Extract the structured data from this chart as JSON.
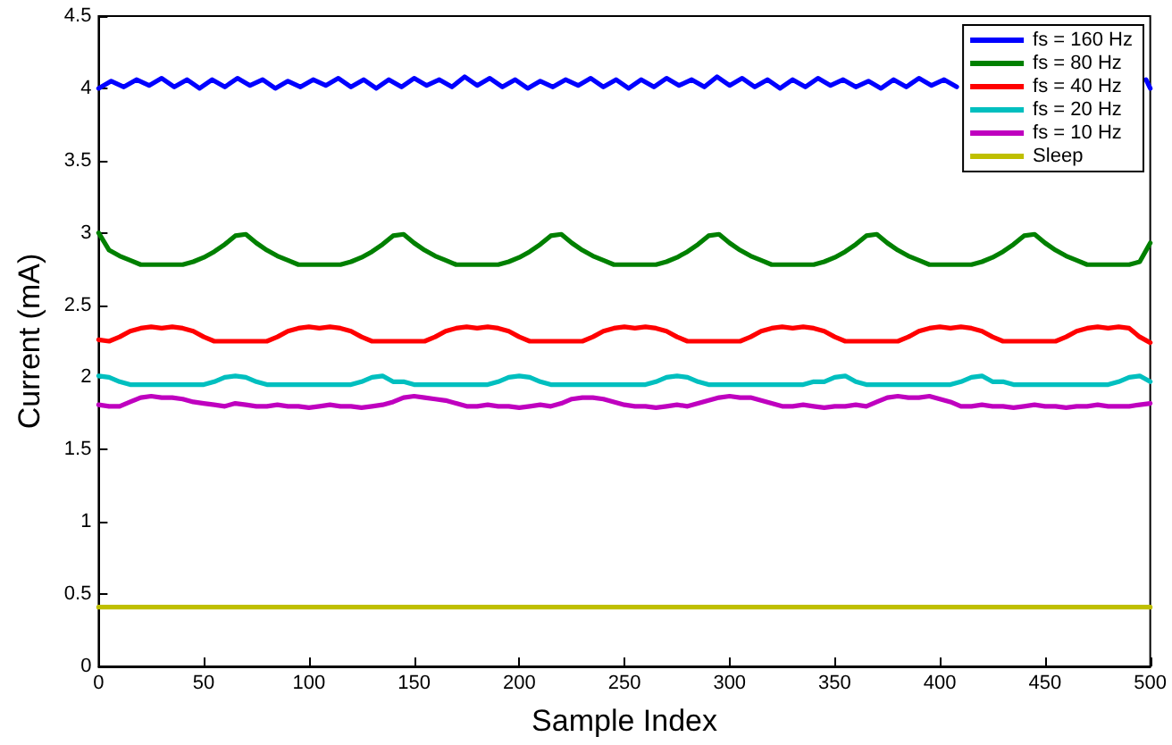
{
  "chart_data": {
    "type": "line",
    "xlabel": "Sample Index",
    "ylabel": "Current (mA)",
    "xlim": [
      0,
      500
    ],
    "xticks": [
      0,
      50,
      100,
      150,
      200,
      250,
      300,
      350,
      400,
      450,
      500
    ],
    "ylim": [
      0,
      4.5
    ],
    "yticks": [
      0,
      0.5,
      1,
      1.5,
      2,
      2.5,
      3,
      3.5,
      4,
      4.5
    ],
    "grid": false,
    "legend": "top right",
    "marker": "none",
    "line_style": "solid",
    "x": [
      0,
      5,
      10,
      15,
      20,
      25,
      30,
      35,
      40,
      45,
      50,
      55,
      60,
      65,
      70,
      75,
      80,
      85,
      90,
      95,
      100,
      105,
      110,
      115,
      120,
      125,
      130,
      135,
      140,
      145,
      150,
      155,
      160,
      165,
      170,
      175,
      180,
      185,
      190,
      195,
      200,
      205,
      210,
      215,
      220,
      225,
      230,
      235,
      240,
      245,
      250,
      255,
      260,
      265,
      270,
      275,
      280,
      285,
      290,
      295,
      300,
      305,
      310,
      315,
      320,
      325,
      330,
      335,
      340,
      345,
      350,
      355,
      360,
      365,
      370,
      375,
      380,
      385,
      390,
      395,
      400,
      405,
      410,
      415,
      420,
      425,
      430,
      435,
      440,
      445,
      450,
      455,
      460,
      465,
      470,
      475,
      480,
      485,
      490,
      495,
      500
    ],
    "series": [
      {
        "name": "fs = 160 Hz",
        "color": "#0000ff",
        "x": [
          0,
          6,
          12,
          18,
          24,
          30,
          36,
          42,
          48,
          54,
          60,
          66,
          72,
          78,
          84,
          90,
          96,
          102,
          108,
          114,
          120,
          126,
          132,
          138,
          144,
          150,
          156,
          162,
          168,
          174,
          180,
          186,
          192,
          198,
          204,
          210,
          216,
          222,
          228,
          234,
          240,
          246,
          252,
          258,
          264,
          270,
          276,
          282,
          288,
          294,
          300,
          306,
          312,
          318,
          324,
          330,
          336,
          342,
          348,
          354,
          360,
          366,
          372,
          378,
          384,
          390,
          396,
          402,
          408,
          414,
          420,
          426,
          432,
          438,
          444,
          450,
          456,
          462,
          468,
          474,
          480,
          486,
          492,
          498,
          500
        ],
        "values": [
          4.0,
          4.05,
          4.01,
          4.06,
          4.02,
          4.07,
          4.01,
          4.06,
          4.0,
          4.06,
          4.01,
          4.07,
          4.02,
          4.06,
          4.0,
          4.05,
          4.01,
          4.06,
          4.02,
          4.07,
          4.01,
          4.06,
          4.0,
          4.06,
          4.01,
          4.07,
          4.02,
          4.06,
          4.01,
          4.08,
          4.02,
          4.07,
          4.01,
          4.06,
          4.0,
          4.05,
          4.01,
          4.06,
          4.02,
          4.07,
          4.01,
          4.06,
          4.0,
          4.06,
          4.01,
          4.07,
          4.02,
          4.06,
          4.01,
          4.08,
          4.02,
          4.07,
          4.01,
          4.06,
          4.0,
          4.06,
          4.01,
          4.07,
          4.02,
          4.06,
          4.01,
          4.05,
          4.0,
          4.06,
          4.01,
          4.07,
          4.02,
          4.06,
          4.01,
          null,
          null,
          null,
          null,
          null,
          null,
          null,
          null,
          null,
          null,
          null,
          null,
          null,
          null,
          4.06,
          4.0
        ]
      },
      {
        "name": "fs = 80 Hz",
        "color": "#008000",
        "values": [
          3.0,
          2.88,
          2.84,
          2.81,
          2.78,
          2.78,
          2.78,
          2.78,
          2.78,
          2.8,
          2.83,
          2.87,
          2.92,
          2.98,
          2.99,
          2.93,
          2.88,
          2.84,
          2.81,
          2.78,
          2.78,
          2.78,
          2.78,
          2.78,
          2.8,
          2.83,
          2.87,
          2.92,
          2.98,
          2.99,
          2.93,
          2.88,
          2.84,
          2.81,
          2.78,
          2.78,
          2.78,
          2.78,
          2.78,
          2.8,
          2.83,
          2.87,
          2.92,
          2.98,
          2.99,
          2.93,
          2.88,
          2.84,
          2.81,
          2.78,
          2.78,
          2.78,
          2.78,
          2.78,
          2.8,
          2.83,
          2.87,
          2.92,
          2.98,
          2.99,
          2.93,
          2.88,
          2.84,
          2.81,
          2.78,
          2.78,
          2.78,
          2.78,
          2.78,
          2.8,
          2.83,
          2.87,
          2.92,
          2.98,
          2.99,
          2.93,
          2.88,
          2.84,
          2.81,
          2.78,
          2.78,
          2.78,
          2.78,
          2.78,
          2.8,
          2.83,
          2.87,
          2.92,
          2.98,
          2.99,
          2.93,
          2.88,
          2.84,
          2.81,
          2.78,
          2.78,
          2.78,
          2.78,
          2.78,
          2.8,
          2.93
        ]
      },
      {
        "name": "fs = 40 Hz",
        "color": "#ff0000",
        "values": [
          2.26,
          2.25,
          2.28,
          2.32,
          2.34,
          2.35,
          2.34,
          2.35,
          2.34,
          2.32,
          2.28,
          2.25,
          2.25,
          2.25,
          2.25,
          2.25,
          2.25,
          2.28,
          2.32,
          2.34,
          2.35,
          2.34,
          2.35,
          2.34,
          2.32,
          2.28,
          2.25,
          2.25,
          2.25,
          2.25,
          2.25,
          2.25,
          2.28,
          2.32,
          2.34,
          2.35,
          2.34,
          2.35,
          2.34,
          2.32,
          2.28,
          2.25,
          2.25,
          2.25,
          2.25,
          2.25,
          2.25,
          2.28,
          2.32,
          2.34,
          2.35,
          2.34,
          2.35,
          2.34,
          2.32,
          2.28,
          2.25,
          2.25,
          2.25,
          2.25,
          2.25,
          2.25,
          2.28,
          2.32,
          2.34,
          2.35,
          2.34,
          2.35,
          2.34,
          2.32,
          2.28,
          2.25,
          2.25,
          2.25,
          2.25,
          2.25,
          2.25,
          2.28,
          2.32,
          2.34,
          2.35,
          2.34,
          2.35,
          2.34,
          2.32,
          2.28,
          2.25,
          2.25,
          2.25,
          2.25,
          2.25,
          2.25,
          2.28,
          2.32,
          2.34,
          2.35,
          2.34,
          2.35,
          2.34,
          2.28,
          2.24
        ]
      },
      {
        "name": "fs = 20 Hz",
        "color": "#00bfbf",
        "values": [
          2.01,
          2.0,
          1.97,
          1.95,
          1.95,
          1.95,
          1.95,
          1.95,
          1.95,
          1.95,
          1.95,
          1.97,
          2.0,
          2.01,
          2.0,
          1.97,
          1.95,
          1.95,
          1.95,
          1.95,
          1.95,
          1.95,
          1.95,
          1.95,
          1.95,
          1.97,
          2.0,
          2.01,
          1.97,
          1.97,
          1.95,
          1.95,
          1.95,
          1.95,
          1.95,
          1.95,
          1.95,
          1.95,
          1.97,
          2.0,
          2.01,
          2.0,
          1.97,
          1.95,
          1.95,
          1.95,
          1.95,
          1.95,
          1.95,
          1.95,
          1.95,
          1.95,
          1.95,
          1.97,
          2.0,
          2.01,
          2.0,
          1.97,
          1.95,
          1.95,
          1.95,
          1.95,
          1.95,
          1.95,
          1.95,
          1.95,
          1.95,
          1.95,
          1.97,
          1.97,
          2.0,
          2.01,
          1.97,
          1.95,
          1.95,
          1.95,
          1.95,
          1.95,
          1.95,
          1.95,
          1.95,
          1.95,
          1.97,
          2.0,
          2.01,
          1.97,
          1.97,
          1.95,
          1.95,
          1.95,
          1.95,
          1.95,
          1.95,
          1.95,
          1.95,
          1.95,
          1.95,
          1.97,
          2.0,
          2.01,
          1.97
        ]
      },
      {
        "name": "fs = 10 Hz",
        "color": "#bf00bf",
        "values": [
          1.81,
          1.8,
          1.8,
          1.83,
          1.86,
          1.87,
          1.86,
          1.86,
          1.85,
          1.83,
          1.82,
          1.81,
          1.8,
          1.82,
          1.81,
          1.8,
          1.8,
          1.81,
          1.8,
          1.8,
          1.79,
          1.8,
          1.81,
          1.8,
          1.8,
          1.79,
          1.8,
          1.81,
          1.83,
          1.86,
          1.87,
          1.86,
          1.85,
          1.84,
          1.82,
          1.8,
          1.8,
          1.81,
          1.8,
          1.8,
          1.79,
          1.8,
          1.81,
          1.8,
          1.82,
          1.85,
          1.86,
          1.86,
          1.85,
          1.83,
          1.81,
          1.8,
          1.8,
          1.79,
          1.8,
          1.81,
          1.8,
          1.82,
          1.84,
          1.86,
          1.87,
          1.86,
          1.86,
          1.84,
          1.82,
          1.8,
          1.8,
          1.81,
          1.8,
          1.79,
          1.8,
          1.8,
          1.81,
          1.8,
          1.83,
          1.86,
          1.87,
          1.86,
          1.86,
          1.87,
          1.85,
          1.83,
          1.8,
          1.8,
          1.81,
          1.8,
          1.8,
          1.79,
          1.8,
          1.81,
          1.8,
          1.8,
          1.79,
          1.8,
          1.8,
          1.81,
          1.8,
          1.8,
          1.8,
          1.81,
          1.82
        ]
      },
      {
        "name": "Sleep",
        "color": "#bfbf00",
        "x": [
          0,
          500
        ],
        "values": [
          0.41,
          0.41
        ]
      }
    ]
  }
}
